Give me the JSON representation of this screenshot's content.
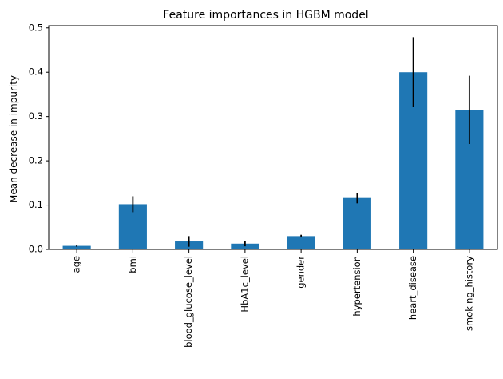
{
  "chart_data": {
    "type": "bar",
    "title": "Feature importances in HGBM model",
    "xlabel": "",
    "ylabel": "Mean decrease in impurity",
    "categories": [
      "age",
      "bmi",
      "blood_glucose_level",
      "HbA1c_level",
      "gender",
      "hypertension",
      "heart_disease",
      "smoking_history"
    ],
    "values": [
      0.008,
      0.102,
      0.018,
      0.013,
      0.03,
      0.116,
      0.4,
      0.315
    ],
    "errors": [
      0.002,
      0.018,
      0.012,
      0.006,
      0.003,
      0.012,
      0.079,
      0.077
    ],
    "ylim": [
      0,
      0.505
    ],
    "yticks": [
      0.0,
      0.1,
      0.2,
      0.3,
      0.4,
      0.5
    ],
    "ytick_labels": [
      "0.0",
      "0.1",
      "0.2",
      "0.3",
      "0.4",
      "0.5"
    ],
    "grid": false,
    "colors": {
      "bar": "#1f77b4",
      "error": "#000000",
      "axis": "#000000"
    }
  }
}
